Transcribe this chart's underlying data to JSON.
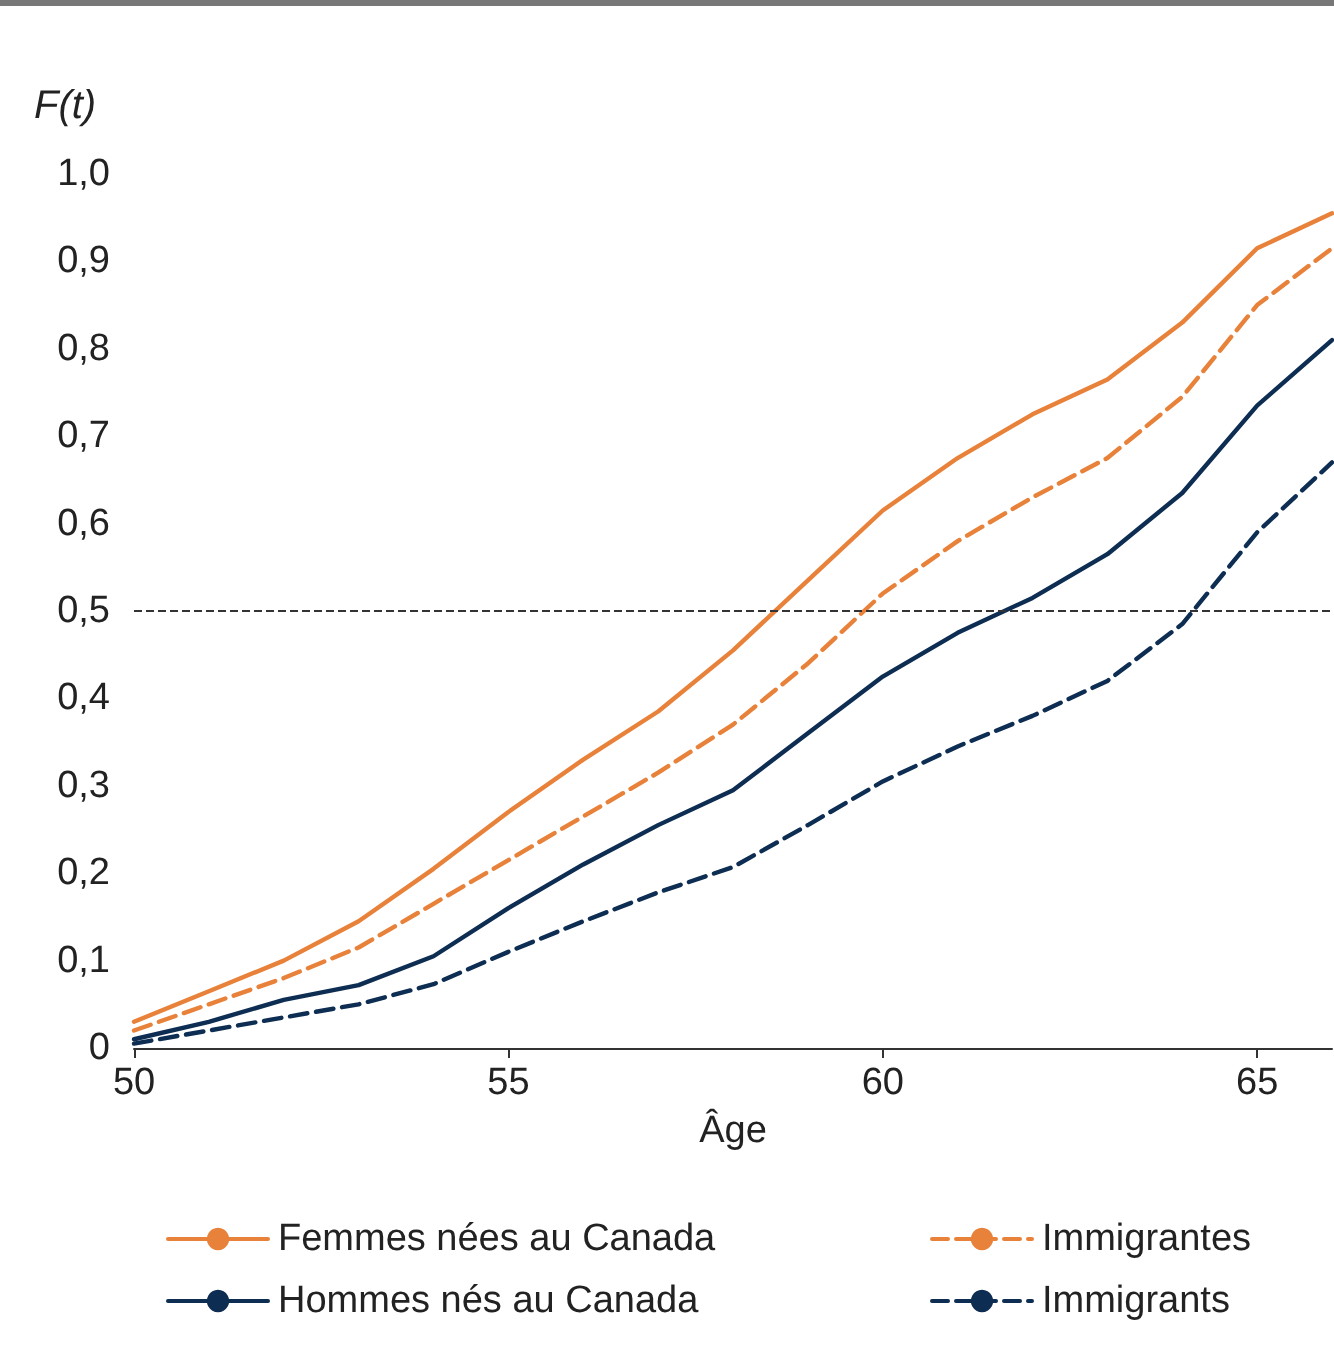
{
  "chart_data": {
    "type": "line",
    "xlabel": "Âge",
    "ylabel": "F(t)",
    "x": [
      50,
      51,
      52,
      53,
      54,
      55,
      56,
      57,
      58,
      59,
      60,
      61,
      62,
      63,
      64,
      65,
      66
    ],
    "xlim": [
      50,
      66
    ],
    "xticks": [
      50,
      55,
      60,
      65
    ],
    "ylim": [
      0,
      1
    ],
    "yticks": [
      {
        "value": 0,
        "label": "0"
      },
      {
        "value": 0.1,
        "label": "0,1"
      },
      {
        "value": 0.2,
        "label": "0,2"
      },
      {
        "value": 0.3,
        "label": "0,3"
      },
      {
        "value": 0.4,
        "label": "0,4"
      },
      {
        "value": 0.5,
        "label": "0,5"
      },
      {
        "value": 0.6,
        "label": "0,6"
      },
      {
        "value": 0.7,
        "label": "0,7"
      },
      {
        "value": 0.8,
        "label": "0,8"
      },
      {
        "value": 0.9,
        "label": "0,9"
      },
      {
        "value": 1,
        "label": "1,0"
      }
    ],
    "series": [
      {
        "name": "Femmes nées au Canada",
        "color": "#e8823a",
        "line_style": "solid",
        "values": [
          0.03,
          0.065,
          0.1,
          0.145,
          0.205,
          0.27,
          0.33,
          0.385,
          0.455,
          0.535,
          0.615,
          0.675,
          0.725,
          0.765,
          0.83,
          0.915,
          0.955
        ]
      },
      {
        "name": "Immigrantes",
        "color": "#e8823a",
        "line_style": "dashed",
        "values": [
          0.02,
          0.05,
          0.08,
          0.115,
          0.165,
          0.215,
          0.265,
          0.315,
          0.37,
          0.44,
          0.52,
          0.58,
          0.63,
          0.675,
          0.745,
          0.85,
          0.915
        ]
      },
      {
        "name": "Hommes nés au Canada",
        "color": "#0d2d52",
        "line_style": "solid",
        "values": [
          0.01,
          0.03,
          0.055,
          0.072,
          0.105,
          0.16,
          0.21,
          0.255,
          0.295,
          0.36,
          0.425,
          0.475,
          0.515,
          0.565,
          0.635,
          0.735,
          0.81
        ]
      },
      {
        "name": "Immigrants",
        "color": "#0d2d52",
        "line_style": "dashed",
        "values": [
          0.005,
          0.02,
          0.035,
          0.05,
          0.073,
          0.11,
          0.145,
          0.178,
          0.207,
          0.255,
          0.305,
          0.345,
          0.38,
          0.42,
          0.485,
          0.59,
          0.67
        ]
      }
    ],
    "ref_lines": [
      {
        "axis": "y",
        "value": 0.5,
        "color": "#333333",
        "line_style": "dashed"
      }
    ],
    "marker": "none",
    "grid": false,
    "legend": "bottom"
  }
}
